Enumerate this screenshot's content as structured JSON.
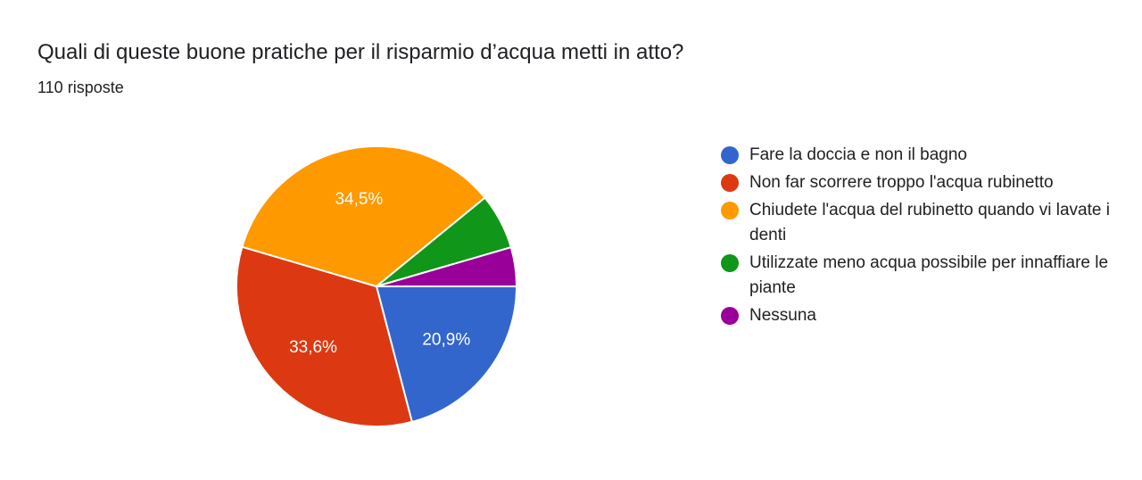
{
  "question": {
    "title": "Quali di queste buone pratiche per il risparmio d’acqua metti in atto?",
    "responses": "110 risposte"
  },
  "chart_data": {
    "type": "pie",
    "title": "Quali di queste buone pratiche per il risparmio d’acqua metti in atto?",
    "total_responses": 110,
    "legend_position": "right",
    "categories": [
      "Fare la doccia e non il bagno",
      "Non far scorrere troppo l'acqua rubinetto",
      "Chiudete l'acqua del rubinetto quando vi lavate i denti",
      "Utilizzate meno acqua possibile per innaffiare le piante",
      "Nessuna"
    ],
    "values": [
      20.9,
      33.6,
      34.5,
      6.4,
      4.5
    ],
    "value_labels": [
      "20,9%",
      "33,6%",
      "34,5%",
      "",
      ""
    ],
    "colors": [
      "#3366cc",
      "#dc3912",
      "#ff9900",
      "#109618",
      "#990099"
    ]
  }
}
